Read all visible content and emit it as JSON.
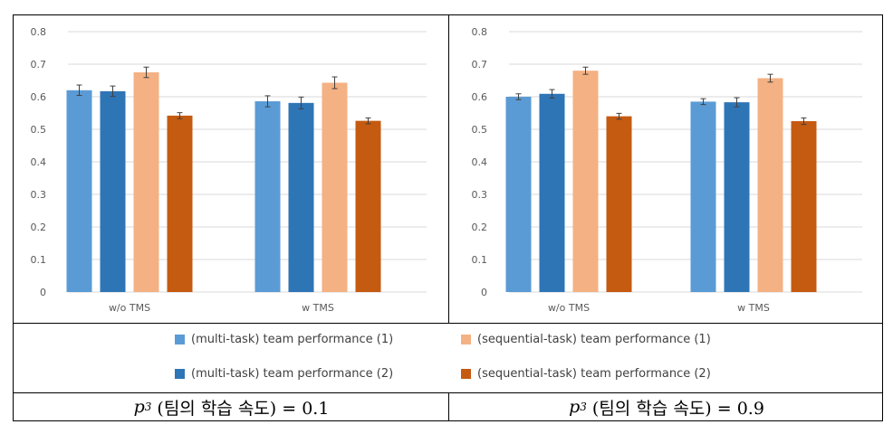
{
  "series_colors": [
    "#5b9bd5",
    "#2e75b6",
    "#f4b183",
    "#c55a11"
  ],
  "legend": [
    "(multi-task) team performance (1)",
    "(sequential-task) team performance (1)",
    "(multi-task) team performance (2)",
    "(sequential-task) team performance (2)"
  ],
  "captions": [
    {
      "variable": "p",
      "subscript": "3",
      "text": " (팀의 학습 속도) = 0.1"
    },
    {
      "variable": "p",
      "subscript": "3",
      "text": " (팀의 학습 속도) = 0.9"
    }
  ],
  "chart_data": [
    {
      "type": "bar",
      "categories": [
        "w/o TMS",
        "w TMS"
      ],
      "ylim": [
        0,
        0.8
      ],
      "yticks": [
        "0",
        "0.1",
        "0.2",
        "0.3",
        "0.4",
        "0.5",
        "0.6",
        "0.7",
        "0.8"
      ],
      "grid": true,
      "error_bars": true,
      "legend_position": "bottom",
      "series": [
        {
          "name": "(multi-task) team performance (1)",
          "values": [
            0.62,
            0.586
          ],
          "errors": [
            0.016,
            0.017
          ]
        },
        {
          "name": "(multi-task) team performance (2)",
          "values": [
            0.617,
            0.581
          ],
          "errors": [
            0.016,
            0.018
          ]
        },
        {
          "name": "(sequential-task) team performance (1)",
          "values": [
            0.675,
            0.643
          ],
          "errors": [
            0.016,
            0.018
          ]
        },
        {
          "name": "(sequential-task) team performance (2)",
          "values": [
            0.542,
            0.526
          ],
          "errors": [
            0.009,
            0.009
          ]
        }
      ]
    },
    {
      "type": "bar",
      "categories": [
        "w/o TMS",
        "w TMS"
      ],
      "ylim": [
        0,
        0.8
      ],
      "yticks": [
        "0",
        "0.1",
        "0.2",
        "0.3",
        "0.4",
        "0.5",
        "0.6",
        "0.7",
        "0.8"
      ],
      "grid": true,
      "error_bars": true,
      "legend_position": "bottom",
      "series": [
        {
          "name": "(multi-task) team performance (1)",
          "values": [
            0.6,
            0.585
          ],
          "errors": [
            0.009,
            0.009
          ]
        },
        {
          "name": "(multi-task) team performance (2)",
          "values": [
            0.609,
            0.583
          ],
          "errors": [
            0.013,
            0.014
          ]
        },
        {
          "name": "(sequential-task) team performance (1)",
          "values": [
            0.68,
            0.657
          ],
          "errors": [
            0.011,
            0.012
          ]
        },
        {
          "name": "(sequential-task) team performance (2)",
          "values": [
            0.54,
            0.525
          ],
          "errors": [
            0.009,
            0.01
          ]
        }
      ]
    }
  ]
}
